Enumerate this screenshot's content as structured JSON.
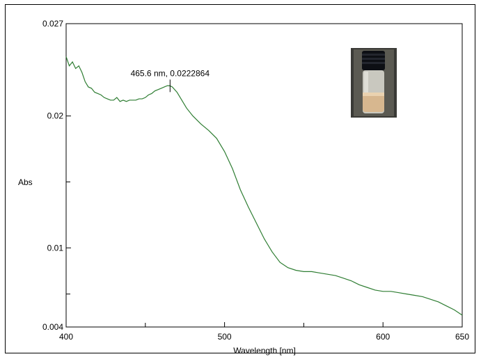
{
  "chart_data": {
    "type": "line",
    "title": "",
    "xlabel": "Wavelength [nm]",
    "ylabel": "Abs",
    "xlim": [
      400,
      650
    ],
    "ylim": [
      0.004,
      0.027
    ],
    "x_ticks": [
      {
        "value": 400,
        "label": "400"
      },
      {
        "value": 500,
        "label": "500"
      },
      {
        "value": 600,
        "label": "600"
      },
      {
        "value": 650,
        "label": "650"
      }
    ],
    "x_minor_ticks": [
      450,
      550
    ],
    "y_ticks": [
      {
        "value": 0.004,
        "label": "0.004"
      },
      {
        "value": 0.01,
        "label": "0.01"
      },
      {
        "value": 0.02,
        "label": "0.02"
      },
      {
        "value": 0.027,
        "label": "0.027"
      }
    ],
    "y_minor_ticks": [
      0.0065,
      0.015
    ],
    "grid": false,
    "series": [
      {
        "color": "#2e7d32",
        "x": [
          400,
          402,
          404,
          406,
          408,
          410,
          412,
          414,
          416,
          418,
          420,
          422,
          424,
          426,
          428,
          430,
          432,
          434,
          436,
          438,
          440,
          442,
          444,
          446,
          448,
          450,
          452,
          454,
          456,
          458,
          460,
          462,
          464,
          465.6,
          467,
          470,
          473,
          476,
          480,
          485,
          490,
          495,
          500,
          505,
          510,
          515,
          520,
          525,
          530,
          535,
          540,
          545,
          550,
          555,
          560,
          565,
          570,
          575,
          580,
          585,
          590,
          595,
          600,
          605,
          610,
          615,
          620,
          625,
          630,
          635,
          640,
          645,
          650
        ],
        "y": [
          0.0245,
          0.0238,
          0.0241,
          0.0236,
          0.0238,
          0.0233,
          0.0226,
          0.0222,
          0.0221,
          0.0218,
          0.0217,
          0.0216,
          0.0214,
          0.0213,
          0.0212,
          0.0212,
          0.0214,
          0.0211,
          0.0212,
          0.0211,
          0.0212,
          0.0212,
          0.0212,
          0.0213,
          0.0213,
          0.0214,
          0.0216,
          0.0217,
          0.0219,
          0.022,
          0.0221,
          0.0222,
          0.0223,
          0.0222864,
          0.0222,
          0.0218,
          0.0212,
          0.0206,
          0.02,
          0.0194,
          0.0189,
          0.0183,
          0.0173,
          0.016,
          0.0144,
          0.0131,
          0.0119,
          0.0107,
          0.0097,
          0.0089,
          0.0085,
          0.0083,
          0.0082,
          0.0082,
          0.0081,
          0.008,
          0.0079,
          0.0077,
          0.0075,
          0.0072,
          0.007,
          0.0068,
          0.0067,
          0.0067,
          0.0066,
          0.0065,
          0.0064,
          0.0063,
          0.0061,
          0.0059,
          0.0056,
          0.0053,
          0.0049
        ]
      }
    ],
    "annotations": [
      {
        "text": "465.6 nm, 0.0222864",
        "x": 465.6,
        "y": 0.0222864
      }
    ],
    "inset_image": "vial-photo"
  }
}
